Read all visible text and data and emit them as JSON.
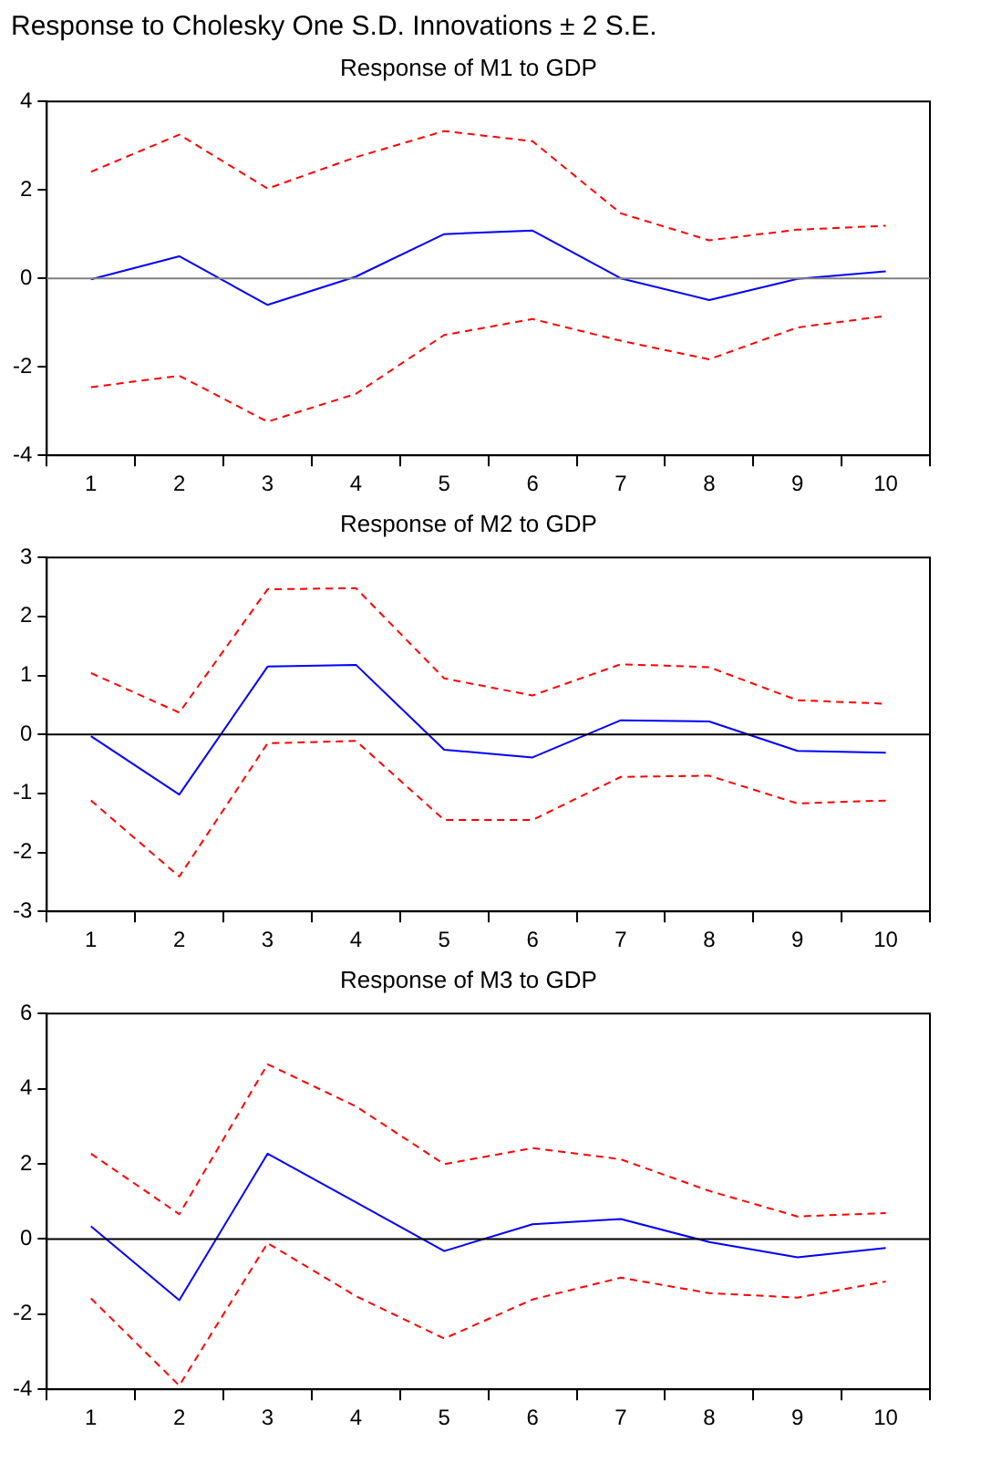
{
  "chart_data": [
    {
      "type": "line",
      "title": "Response to Cholesky One S.D. Innovations ± 2 S.E.",
      "subtitle": "Response of M1 to GDP",
      "categories": [
        "1",
        "2",
        "3",
        "4",
        "5",
        "6",
        "7",
        "8",
        "9",
        "10"
      ],
      "ylim": [
        -4,
        4
      ],
      "yticks": [
        -4,
        -2,
        0,
        2,
        4
      ],
      "grid": false,
      "legend": false,
      "marker": "none",
      "series": [
        {
          "color": "#0000ff",
          "line_style": "solid",
          "values": [
            -0.02,
            0.5,
            -0.6,
            0.04,
            1.0,
            1.08,
            0.0,
            -0.49,
            -0.01,
            0.16
          ]
        },
        {
          "color": "#ff0000",
          "line_style": "dashed",
          "values": [
            2.41,
            3.25,
            2.03,
            2.74,
            3.33,
            3.1,
            1.47,
            0.86,
            1.1,
            1.19
          ]
        },
        {
          "color": "#ff0000",
          "line_style": "dashed",
          "values": [
            -2.46,
            -2.2,
            -3.24,
            -2.61,
            -1.28,
            -0.92,
            -1.41,
            -1.83,
            -1.11,
            -0.85
          ]
        }
      ],
      "ref_lines": [
        {
          "axis": "y",
          "value": 0,
          "color": "#808080"
        }
      ]
    },
    {
      "type": "line",
      "title": "Response of M2 to GDP",
      "categories": [
        "1",
        "2",
        "3",
        "4",
        "5",
        "6",
        "7",
        "8",
        "9",
        "10"
      ],
      "ylim": [
        -3,
        3
      ],
      "yticks": [
        -3,
        -2,
        -1,
        0,
        1,
        2,
        3
      ],
      "grid": false,
      "legend": false,
      "marker": "none",
      "series": [
        {
          "color": "#0000ff",
          "line_style": "solid",
          "values": [
            -0.03,
            -1.02,
            1.15,
            1.18,
            -0.26,
            -0.39,
            0.24,
            0.22,
            -0.28,
            -0.31
          ]
        },
        {
          "color": "#ff0000",
          "line_style": "dashed",
          "values": [
            1.04,
            0.37,
            2.46,
            2.48,
            0.95,
            0.66,
            1.19,
            1.14,
            0.58,
            0.52
          ]
        },
        {
          "color": "#ff0000",
          "line_style": "dashed",
          "values": [
            -1.12,
            -2.41,
            -0.15,
            -0.11,
            -1.45,
            -1.45,
            -0.72,
            -0.7,
            -1.17,
            -1.12
          ]
        }
      ],
      "ref_lines": [
        {
          "axis": "y",
          "value": 0,
          "color": "#000000"
        }
      ]
    },
    {
      "type": "line",
      "title": "Response of M3 to GDP",
      "categories": [
        "1",
        "2",
        "3",
        "4",
        "5",
        "6",
        "7",
        "8",
        "9",
        "10"
      ],
      "ylim": [
        -4,
        6
      ],
      "yticks": [
        -4,
        -2,
        0,
        2,
        4,
        6
      ],
      "grid": false,
      "legend": false,
      "marker": "none",
      "series": [
        {
          "color": "#0000ff",
          "line_style": "solid",
          "values": [
            0.34,
            -1.63,
            2.27,
            0.98,
            -0.32,
            0.39,
            0.53,
            -0.08,
            -0.49,
            -0.24
          ]
        },
        {
          "color": "#ff0000",
          "line_style": "dashed",
          "values": [
            2.27,
            0.66,
            4.65,
            3.53,
            1.99,
            2.42,
            2.12,
            1.28,
            0.6,
            0.69
          ]
        },
        {
          "color": "#ff0000",
          "line_style": "dashed",
          "values": [
            -1.58,
            -3.9,
            -0.11,
            -1.52,
            -2.65,
            -1.61,
            -1.03,
            -1.44,
            -1.56,
            -1.13
          ]
        }
      ],
      "ref_lines": [
        {
          "axis": "y",
          "value": 0,
          "color": "#000000"
        }
      ]
    }
  ]
}
